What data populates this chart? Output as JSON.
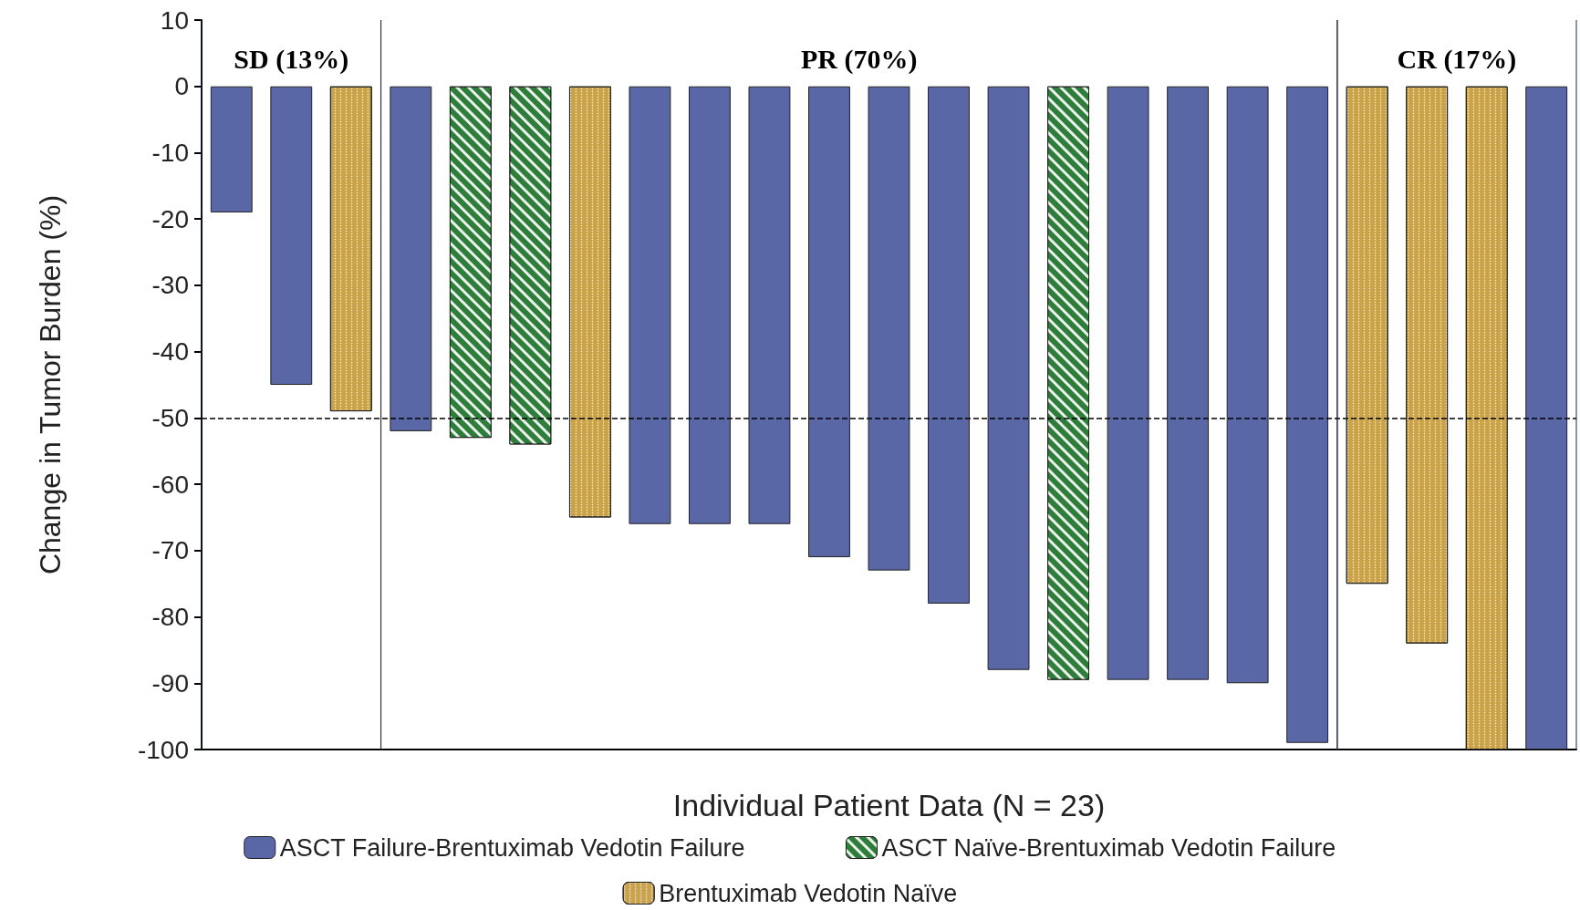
{
  "chart_data": {
    "type": "bar",
    "xlabel": "Individual Patient Data (N = 23)",
    "ylabel": "Change in Tumor Burden (%)",
    "categories": [
      null,
      null,
      null,
      null,
      null,
      null,
      null,
      null,
      null,
      null,
      null,
      null,
      null,
      null,
      null,
      null,
      null,
      null,
      null,
      null,
      null,
      null,
      null
    ],
    "series": [
      {
        "name": "ASCT Failure-Brentuximab Vedotin Failure",
        "color": "#5a67a6",
        "values": [
          -19,
          -45,
          null,
          -52,
          null,
          null,
          null,
          -66,
          -66,
          -66,
          -71,
          -73,
          -78,
          -88,
          null,
          -89.5,
          -89.5,
          -90,
          -99,
          null,
          null,
          null,
          -100
        ]
      },
      {
        "name": "ASCT Naïve-Brentuximab Vedotin Failure",
        "color": "#2e7d3a",
        "values": [
          null,
          null,
          null,
          null,
          -53,
          -54,
          null,
          null,
          null,
          null,
          null,
          null,
          null,
          null,
          -89.5,
          null,
          null,
          null,
          null,
          null,
          null,
          null,
          null
        ]
      },
      {
        "name": "Brentuximab Vedotin Naïve",
        "color": "#c9a24a",
        "values": [
          null,
          null,
          -49,
          null,
          null,
          null,
          -65,
          null,
          null,
          null,
          null,
          null,
          null,
          null,
          null,
          null,
          null,
          null,
          null,
          -75,
          -84,
          -100,
          null
        ]
      }
    ],
    "ylim": [
      -100,
      10
    ],
    "yticks": [
      -100,
      -90,
      -80,
      -70,
      -60,
      -50,
      -40,
      -30,
      -20,
      -10,
      0,
      10
    ],
    "ref_lines": [
      {
        "axis": "y",
        "value": -50,
        "line_style": "dashed",
        "color": "#000000"
      }
    ],
    "annotations": [
      "SD (13%)",
      "PR (70%)",
      "CR (17%)"
    ],
    "grid": false,
    "legend": "bottom"
  }
}
